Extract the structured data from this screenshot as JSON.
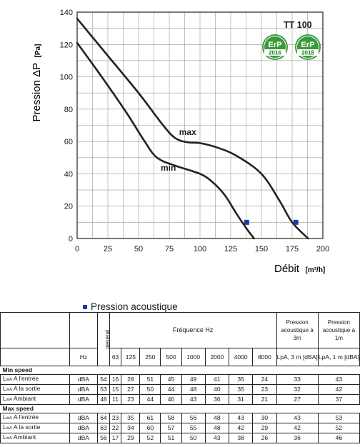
{
  "chart_data": {
    "type": "line",
    "title": "",
    "model_label": "TT 100",
    "ylabel": "Pression ΔP",
    "ylabel_unit": "[Pa]",
    "xlabel": "Débit",
    "xlabel_unit": "[m³/h]",
    "xlim": [
      0,
      200
    ],
    "ylim": [
      0,
      140
    ],
    "x_ticks": [
      0,
      25,
      50,
      75,
      100,
      125,
      150,
      175,
      200
    ],
    "y_ticks": [
      0,
      20,
      40,
      60,
      80,
      100,
      120,
      140
    ],
    "grid": true,
    "series": [
      {
        "name": "max",
        "x": [
          0,
          25,
          50,
          70,
          80,
          90,
          100,
          115,
          130,
          150,
          165,
          175,
          188
        ],
        "y": [
          136,
          113,
          90,
          70,
          62,
          59.5,
          59,
          56,
          51,
          40,
          23,
          10,
          0
        ],
        "marker": {
          "x": 178,
          "y": 10
        }
      },
      {
        "name": "min",
        "x": [
          0,
          20,
          40,
          55,
          65,
          80,
          100,
          110,
          120,
          130,
          138,
          144
        ],
        "y": [
          121,
          100,
          78,
          60,
          50,
          45,
          40,
          35,
          27,
          15,
          6,
          0
        ],
        "marker": {
          "x": 138,
          "y": 10
        }
      }
    ],
    "series_label_positions": {
      "max": [
        83,
        64
      ],
      "min": [
        68,
        42
      ]
    },
    "colors": {
      "curve": "#222222",
      "marker": "#1f3c9a",
      "grid": "#999999",
      "badge_green": "#3a9a3a"
    }
  },
  "badges": [
    {
      "text": "ErP",
      "year": "2016"
    },
    {
      "text": "ErP",
      "year": "2018"
    }
  ],
  "legend": {
    "label": "Pression acoustique"
  },
  "table": {
    "header": {
      "general": "general",
      "frequence": "Fréquence Hz",
      "pa3m_title": "Pression acoustique à 3m",
      "pa1m_title": "Pression acoustique à 1m",
      "hz": "Hz",
      "bands": [
        "63",
        "125",
        "250",
        "500",
        "1000",
        "2000",
        "4000",
        "8000"
      ],
      "pa3m_unit": "LpA, 3 m [dBA]",
      "pa1m_unit": "LpA, 1 m [dBA]"
    },
    "sections": [
      {
        "title": "Min speed",
        "rows": [
          {
            "label_l": "L",
            "label_sub": "wA",
            "label_rest": " A l'entrée",
            "unit": "dBA",
            "general": "54",
            "bands": [
              "16",
              "28",
              "51",
              "45",
              "49",
              "41",
              "35",
              "24"
            ],
            "pa3m": "33",
            "pa1m": "43"
          },
          {
            "label_l": "L",
            "label_sub": "wA",
            "label_rest": " A la sortie",
            "unit": "dBA",
            "general": "53",
            "bands": [
              "15",
              "27",
              "50",
              "44",
              "48",
              "40",
              "35",
              "23"
            ],
            "pa3m": "32",
            "pa1m": "42"
          },
          {
            "label_l": "L",
            "label_sub": "wA",
            "label_rest": " Ambiant",
            "unit": "dBA",
            "general": "48",
            "bands": [
              "11",
              "23",
              "44",
              "40",
              "43",
              "36",
              "31",
              "21"
            ],
            "pa3m": "27",
            "pa1m": "37"
          }
        ]
      },
      {
        "title": "Max speed",
        "rows": [
          {
            "label_l": "L",
            "label_sub": "wA",
            "label_rest": " A l'entrée",
            "unit": "dBA",
            "general": "64",
            "bands": [
              "23",
              "35",
              "61",
              "58",
              "56",
              "48",
              "43",
              "30"
            ],
            "pa3m": "43",
            "pa1m": "53"
          },
          {
            "label_l": "L",
            "label_sub": "wA",
            "label_rest": " A la sortie",
            "unit": "dBA",
            "general": "63",
            "bands": [
              "22",
              "34",
              "60",
              "57",
              "55",
              "48",
              "42",
              "29"
            ],
            "pa3m": "42",
            "pa1m": "52"
          },
          {
            "label_l": "L",
            "label_sub": "wA",
            "label_rest": " Ambiant",
            "unit": "dBA",
            "general": "56",
            "bands": [
              "17",
              "29",
              "52",
              "51",
              "50",
              "43",
              "38",
              "26"
            ],
            "pa3m": "36",
            "pa1m": "46"
          }
        ]
      }
    ]
  }
}
